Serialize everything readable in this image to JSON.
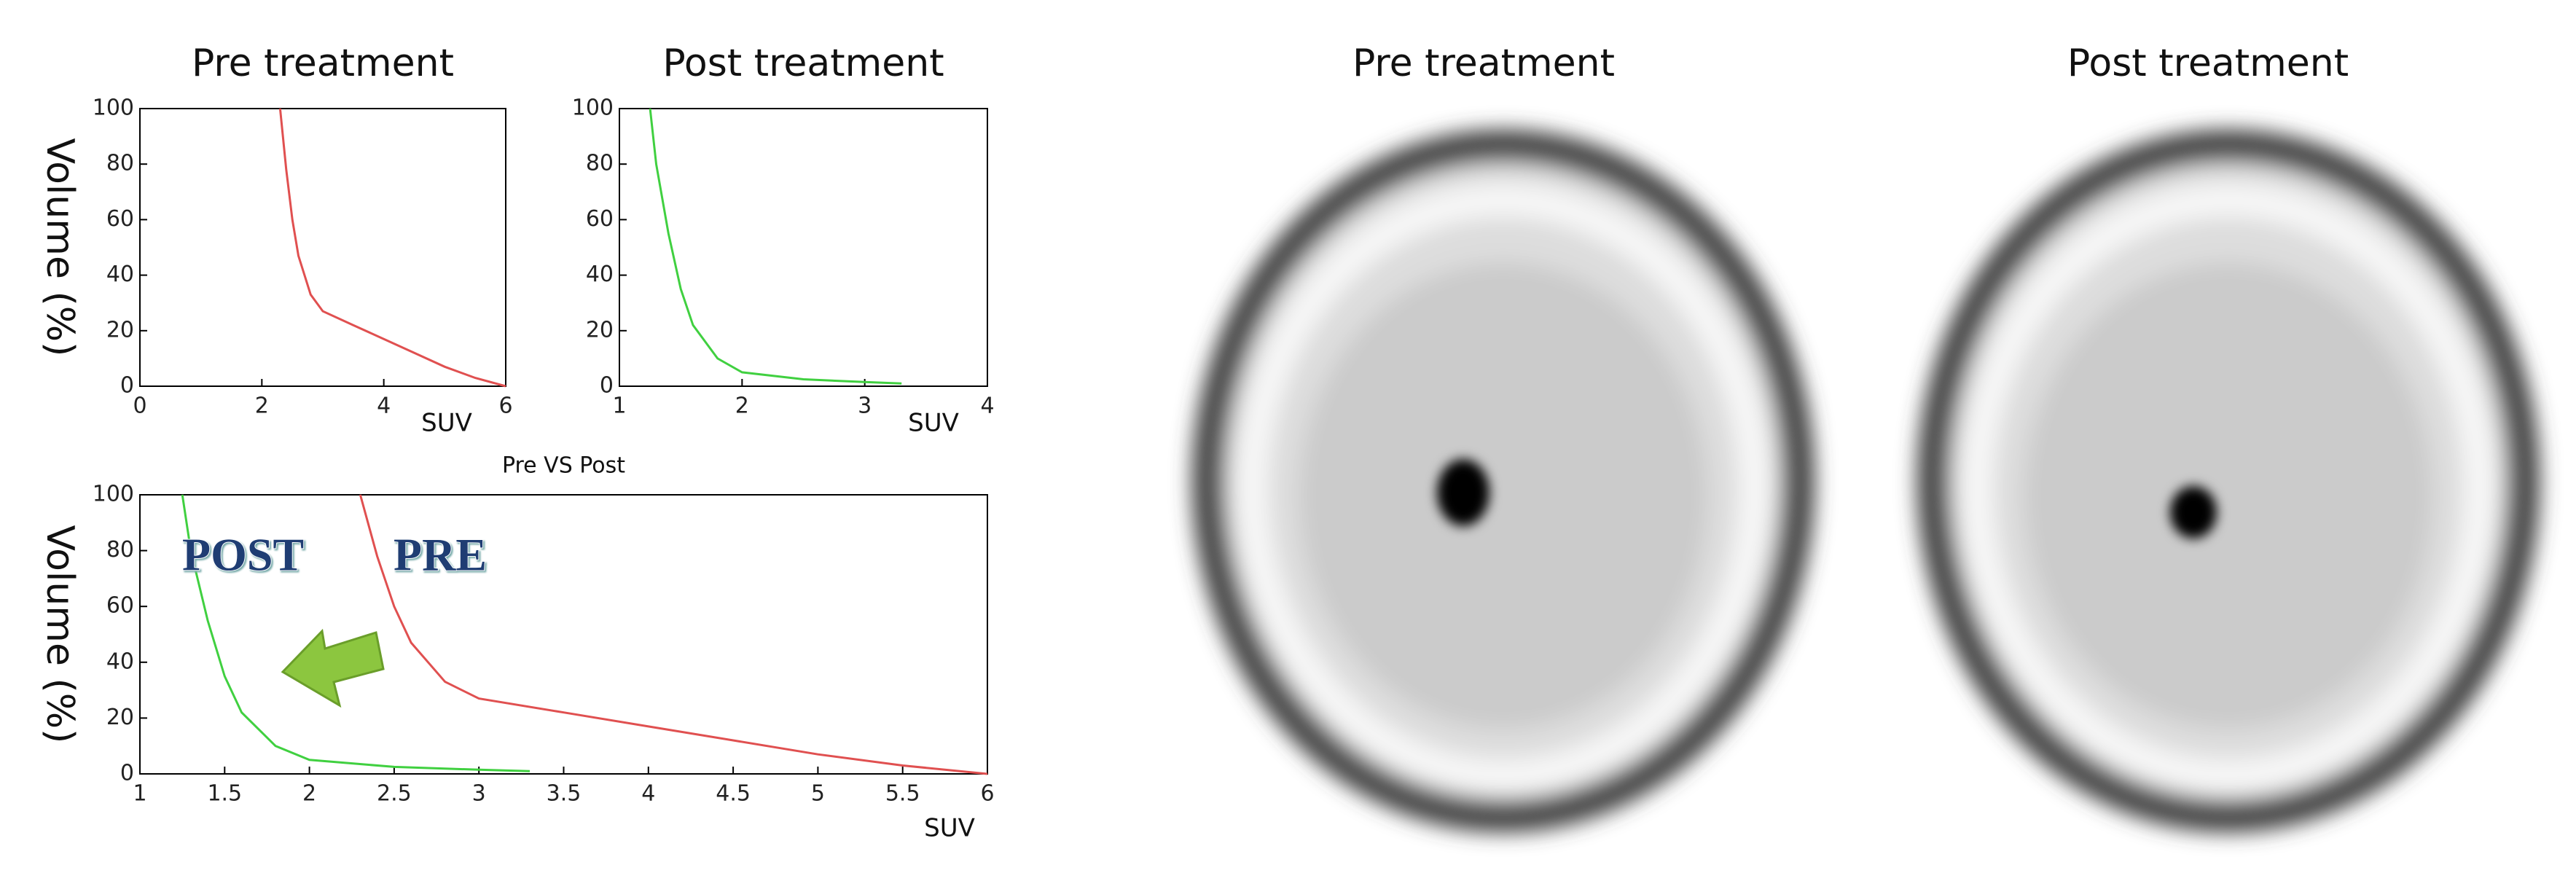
{
  "chart_data": [
    {
      "type": "line",
      "title": "Pre treatment",
      "ylabel": "Volume (%)",
      "xlabel": "SUV",
      "xlim": [
        0,
        6
      ],
      "xticks": [
        0,
        2,
        4,
        6
      ],
      "ylim": [
        0,
        100
      ],
      "yticks": [
        0,
        20,
        40,
        60,
        80,
        100
      ],
      "series": [
        {
          "color": "#e05050",
          "x": [
            2.3,
            2.4,
            2.5,
            2.6,
            2.8,
            3,
            3.5,
            4,
            4.5,
            5,
            5.5,
            6
          ],
          "y": [
            100,
            78,
            60,
            47,
            33,
            27,
            22,
            17,
            12,
            7,
            3,
            0
          ]
        }
      ]
    },
    {
      "type": "line",
      "title": "Post treatment",
      "xlabel": "SUV",
      "xlim": [
        1,
        4
      ],
      "xticks": [
        1,
        2,
        3,
        4
      ],
      "ylim": [
        0,
        100
      ],
      "yticks": [
        0,
        20,
        40,
        60,
        80,
        100
      ],
      "series": [
        {
          "color": "#40d040",
          "x": [
            1.25,
            1.3,
            1.4,
            1.5,
            1.6,
            1.8,
            2,
            2.5,
            3,
            3.3
          ],
          "y": [
            100,
            80,
            55,
            35,
            22,
            10,
            5,
            2.5,
            1.5,
            1
          ]
        }
      ]
    },
    {
      "type": "line",
      "title": "Pre VS Post",
      "ylabel": "Volume (%)",
      "xlabel": "SUV",
      "xlim": [
        1,
        6
      ],
      "xticks": [
        1,
        1.5,
        2,
        2.5,
        3,
        3.5,
        4,
        4.5,
        5,
        5.5,
        6
      ],
      "ylim": [
        0,
        100
      ],
      "yticks": [
        0,
        20,
        40,
        60,
        80,
        100
      ],
      "series": [
        {
          "name": "POST",
          "color": "#40d040",
          "x": [
            1.25,
            1.3,
            1.4,
            1.5,
            1.6,
            1.8,
            2,
            2.5,
            3,
            3.3
          ],
          "y": [
            100,
            80,
            55,
            35,
            22,
            10,
            5,
            2.5,
            1.5,
            1
          ]
        },
        {
          "name": "PRE",
          "color": "#e05050",
          "x": [
            2.3,
            2.4,
            2.5,
            2.6,
            2.8,
            3,
            3.5,
            4,
            4.5,
            5,
            5.5,
            6
          ],
          "y": [
            100,
            78,
            60,
            47,
            33,
            27,
            22,
            17,
            12,
            7,
            3,
            0
          ]
        }
      ]
    }
  ],
  "images": [
    {
      "title": "Pre treatment"
    },
    {
      "title": "Post treatment"
    }
  ]
}
